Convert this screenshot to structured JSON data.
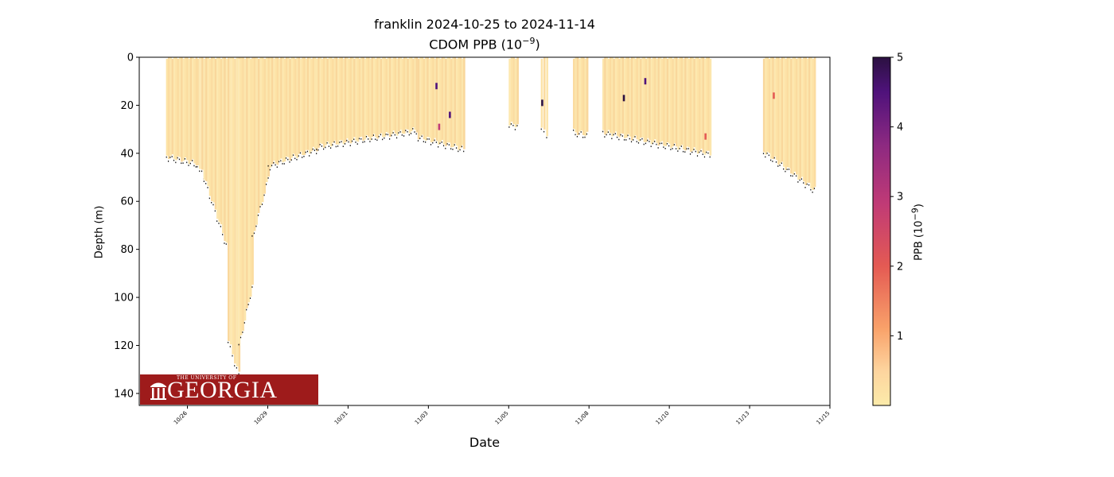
{
  "chart_data": {
    "type": "scatter",
    "title": "franklin 2024-10-25 to 2024-11-14",
    "subtitle_prefix": "CDOM PPB (10",
    "subtitle_exp": "−9",
    "subtitle_suffix": ")",
    "xlabel": "Date",
    "ylabel": "Depth (m)",
    "colorbar_label_prefix": "PPB (10",
    "colorbar_label_exp": "−9",
    "colorbar_label_suffix": ")",
    "colormap": "magma_r",
    "colorbar_range": [
      0,
      5
    ],
    "colorbar_ticks": [
      "1",
      "2",
      "3",
      "4",
      "5"
    ],
    "xlim": [
      "2024-10-24T12:00",
      "2024-11-15T00:00"
    ],
    "ylim": [
      145,
      0
    ],
    "x_ticks": [
      {
        "date": "2024-10-26T00:00",
        "label": "10/26"
      },
      {
        "date": "2024-10-28T12:00",
        "label": "10/29"
      },
      {
        "date": "2024-10-31T00:00",
        "label": "10/31"
      },
      {
        "date": "2024-11-02T12:00",
        "label": "11/03"
      },
      {
        "date": "2024-11-05T00:00",
        "label": "11/05"
      },
      {
        "date": "2024-11-07T12:00",
        "label": "11/08"
      },
      {
        "date": "2024-11-10T00:00",
        "label": "11/10"
      },
      {
        "date": "2024-11-12T12:00",
        "label": "11/13"
      },
      {
        "date": "2024-11-15T00:00",
        "label": "11/15"
      }
    ],
    "y_ticks": [
      0,
      20,
      40,
      60,
      80,
      100,
      120,
      140
    ],
    "profiles": [
      {
        "start": "2024-10-25T08:00",
        "end": "2024-10-26T06:00",
        "depth_start": 41,
        "depth_end": 44
      },
      {
        "start": "2024-10-26T07:00",
        "end": "2024-10-26T12:00",
        "depth_start": 44,
        "depth_end": 50
      },
      {
        "start": "2024-10-26T12:00",
        "end": "2024-10-27T06:00",
        "depth_start": 50,
        "depth_end": 80
      },
      {
        "start": "2024-10-27T06:00",
        "end": "2024-10-27T14:00",
        "depth_start": 118,
        "depth_end": 132
      },
      {
        "start": "2024-10-27T14:00",
        "end": "2024-10-28T00:00",
        "depth_start": 120,
        "depth_end": 95
      },
      {
        "start": "2024-10-28T00:00",
        "end": "2024-10-28T12:00",
        "depth_start": 75,
        "depth_end": 50
      },
      {
        "start": "2024-10-28T12:00",
        "end": "2024-10-30T00:00",
        "depth_start": 45,
        "depth_end": 38
      },
      {
        "start": "2024-10-30T00:00",
        "end": "2024-11-02T04:00",
        "depth_start": 37,
        "depth_end": 30
      },
      {
        "start": "2024-11-02T04:00",
        "end": "2024-11-03T14:00",
        "depth_start": 33,
        "depth_end": 38
      },
      {
        "start": "2024-11-05T00:00",
        "end": "2024-11-05T06:00",
        "depth_start": 28,
        "depth_end": 28
      },
      {
        "start": "2024-11-06T00:00",
        "end": "2024-11-06T04:00",
        "depth_start": 30,
        "depth_end": 32
      },
      {
        "start": "2024-11-07T00:00",
        "end": "2024-11-07T10:00",
        "depth_start": 31,
        "depth_end": 32
      },
      {
        "start": "2024-11-07T22:00",
        "end": "2024-11-11T06:00",
        "depth_start": 31,
        "depth_end": 40
      },
      {
        "start": "2024-11-12T22:00",
        "end": "2024-11-14T12:00",
        "depth_start": 39,
        "depth_end": 55
      }
    ],
    "high_value_spots": [
      {
        "date": "2024-11-02T18:00",
        "depth": 12,
        "value": 4.5
      },
      {
        "date": "2024-11-02T20:00",
        "depth": 29,
        "value": 2.2
      },
      {
        "date": "2024-11-03T04:00",
        "depth": 24,
        "value": 4.2
      },
      {
        "date": "2024-11-06T01:00",
        "depth": 19,
        "value": 4.8
      },
      {
        "date": "2024-11-08T14:00",
        "depth": 17,
        "value": 4.6
      },
      {
        "date": "2024-11-09T06:00",
        "depth": 10,
        "value": 3.8
      },
      {
        "date": "2024-11-11T03:00",
        "depth": 33,
        "value": 1.8
      },
      {
        "date": "2024-11-13T06:00",
        "depth": 16,
        "value": 1.6
      }
    ]
  },
  "logo": {
    "small": "THE UNIVERSITY OF",
    "big": "GEORGIA",
    "color": "#9e1b1b"
  }
}
